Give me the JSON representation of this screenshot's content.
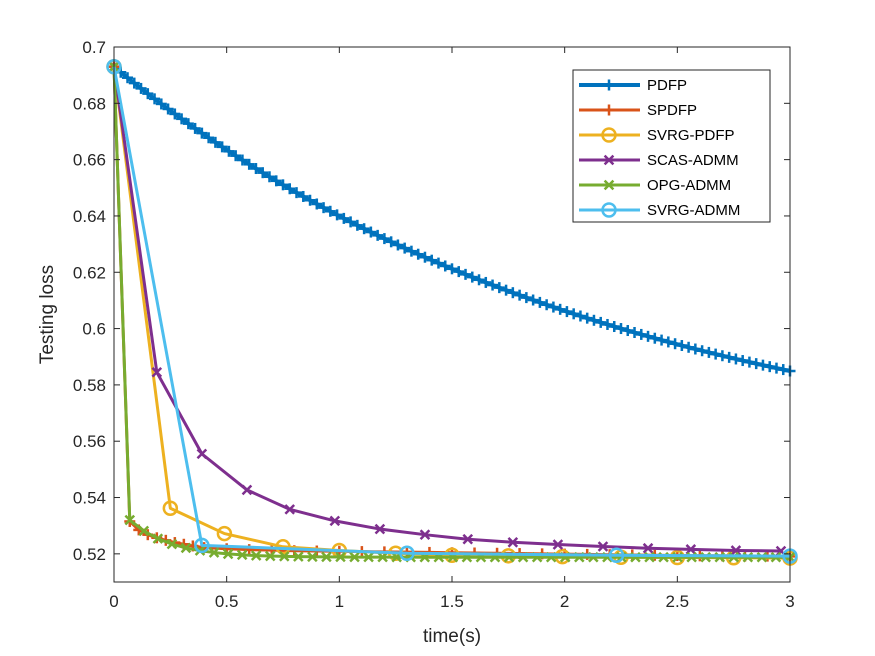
{
  "chart_data": {
    "type": "line",
    "title": "",
    "xlabel": "time(s)",
    "ylabel": "Testing loss",
    "xlim": [
      0,
      3
    ],
    "ylim": [
      0.51,
      0.7
    ],
    "xticks": [
      0,
      0.5,
      1,
      1.5,
      2,
      2.5,
      3
    ],
    "xtick_labels": [
      "0",
      "0.5",
      "1",
      "1.5",
      "2",
      "2.5",
      "3"
    ],
    "yticks": [
      0.52,
      0.54,
      0.56,
      0.58,
      0.6,
      0.62,
      0.64,
      0.66,
      0.68,
      0.7
    ],
    "ytick_labels": [
      "0.52",
      "0.54",
      "0.56",
      "0.58",
      "0.6",
      "0.62",
      "0.64",
      "0.66",
      "0.68",
      "0.7"
    ],
    "grid": false,
    "legend_position": "top-right",
    "series": [
      {
        "name": "PDFP",
        "color": "#0072BD",
        "marker": "plus",
        "line_width": 4,
        "model": {
          "kind": "exp",
          "y0": 0.693,
          "a": 0.5478,
          "b": 0.1452,
          "tau": 2.2,
          "xmax": 3.0,
          "n": 101
        }
      },
      {
        "name": "SPDFP",
        "color": "#D95319",
        "marker": "plus",
        "line_width": 3,
        "x": [
          0,
          0.07,
          0.11,
          0.15,
          0.19,
          0.23,
          0.27,
          0.31,
          0.35,
          0.4,
          0.5,
          0.6,
          0.7,
          0.8,
          0.9,
          1.0,
          1.1,
          1.2,
          1.3,
          1.4,
          1.5,
          1.6,
          1.7,
          1.8,
          1.9,
          2.0,
          2.1,
          2.2,
          2.3,
          2.4,
          2.5,
          2.6,
          2.7,
          2.8,
          2.9,
          3.0
        ],
        "values": [
          0.693,
          0.5315,
          0.5285,
          0.5268,
          0.5257,
          0.5248,
          0.524,
          0.5234,
          0.5228,
          0.5222,
          0.5218,
          0.5215,
          0.5213,
          0.5211,
          0.521,
          0.5209,
          0.5208,
          0.5207,
          0.5206,
          0.5205,
          0.5204,
          0.5203,
          0.5202,
          0.5201,
          0.52,
          0.5199,
          0.5198,
          0.5197,
          0.5196,
          0.5195,
          0.5194,
          0.5193,
          0.5193,
          0.5192,
          0.5192,
          0.5191
        ]
      },
      {
        "name": "SVRG-PDFP",
        "color": "#EDB120",
        "marker": "circle",
        "line_width": 3,
        "x": [
          0,
          0.25,
          0.49,
          0.75,
          1.0,
          1.25,
          1.5,
          1.75,
          1.99,
          2.25,
          2.5,
          2.75,
          3.0
        ],
        "values": [
          0.693,
          0.5362,
          0.5272,
          0.5225,
          0.5212,
          0.5202,
          0.5195,
          0.5193,
          0.519,
          0.5188,
          0.5187,
          0.5186,
          0.5185
        ]
      },
      {
        "name": "SCAS-ADMM",
        "color": "#7E2F8E",
        "marker": "x",
        "line_width": 3,
        "x": [
          0,
          0.19,
          0.39,
          0.59,
          0.78,
          0.98,
          1.18,
          1.38,
          1.57,
          1.77,
          1.97,
          2.17,
          2.37,
          2.56,
          2.76,
          2.96
        ],
        "values": [
          0.693,
          0.5845,
          0.5555,
          0.5427,
          0.5358,
          0.5317,
          0.5288,
          0.5268,
          0.5252,
          0.5241,
          0.5233,
          0.5226,
          0.522,
          0.5216,
          0.5212,
          0.521
        ]
      },
      {
        "name": "OPG-ADMM",
        "color": "#77AC30",
        "marker": "x",
        "line_width": 3,
        "model": {
          "kind": "drop",
          "y0": 0.693,
          "x1": 0.07,
          "y1": 0.532,
          "yend": 0.5188,
          "tau": 0.18,
          "xmax": 3.0,
          "n": 48
        }
      },
      {
        "name": "SVRG-ADMM",
        "color": "#4DBEEE",
        "marker": "circle",
        "line_width": 3,
        "x": [
          0,
          0.39,
          1.3,
          2.23,
          3.0
        ],
        "values": [
          0.693,
          0.523,
          0.5202,
          0.5195,
          0.5192
        ]
      }
    ]
  }
}
